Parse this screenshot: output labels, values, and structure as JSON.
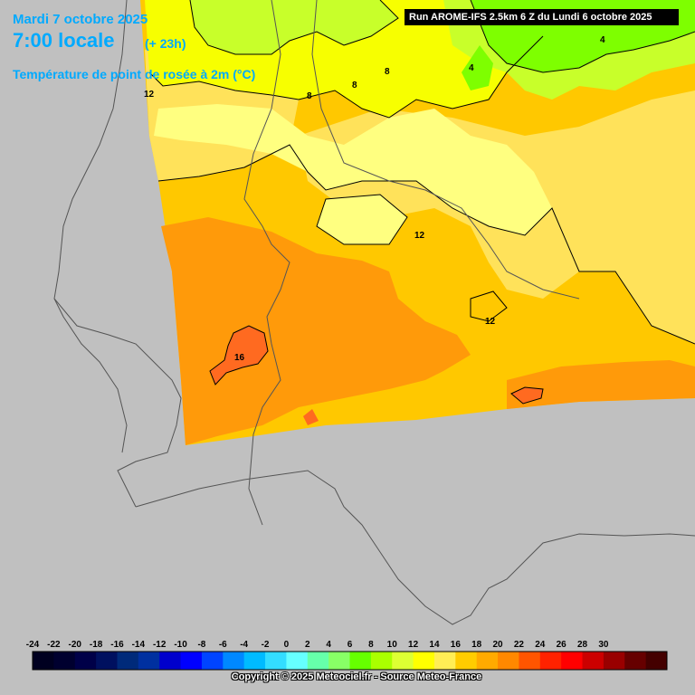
{
  "header": {
    "date": "Mardi 7 octobre 2025",
    "time": "7:00 locale",
    "lead": "(+ 23h)",
    "parameter": "Température de point de rosée à 2m (°C)",
    "run": "Run AROME-IFS 2.5km 6 Z du Lundi 6 octobre 2025"
  },
  "map": {
    "contour_labels": [
      "4",
      "4",
      "8",
      "8",
      "8",
      "12",
      "12",
      "12",
      "16"
    ],
    "colors": {
      "sea": "#c0c0c0",
      "orange_16": "#ff9a0a",
      "orange_14": "#ffc800",
      "yellow_12": "#ffe25a",
      "yellow_10": "#ffff80",
      "yellow_8": "#f7ff00",
      "green_6": "#c8ff2a",
      "green_4": "#7eff00",
      "hot_spot": "#ff6a20"
    }
  },
  "legend": {
    "labels": [
      "-24",
      "-22",
      "-20",
      "-18",
      "-16",
      "-14",
      "-12",
      "-10",
      "-8",
      "-6",
      "-4",
      "-2",
      "0",
      "2",
      "4",
      "6",
      "8",
      "10",
      "12",
      "14",
      "16",
      "18",
      "20",
      "22",
      "24",
      "26",
      "28",
      "30"
    ],
    "colors": [
      "#000020",
      "#00002f",
      "#000048",
      "#00105f",
      "#002a7a",
      "#0030a0",
      "#0000cc",
      "#0000ff",
      "#0044ff",
      "#0088ff",
      "#00bbff",
      "#33ddff",
      "#66ffff",
      "#66ffaa",
      "#88ff66",
      "#66ff00",
      "#aaff00",
      "#ddff33",
      "#ffff00",
      "#ffee55",
      "#ffcc00",
      "#ffaa00",
      "#ff8800",
      "#ff5500",
      "#ff2200",
      "#ff0000",
      "#cc0000",
      "#990000",
      "#660000",
      "#440000"
    ]
  },
  "footer": {
    "copyright": "Copyright © 2025 Meteociel.fr - Source Meteo-France"
  }
}
